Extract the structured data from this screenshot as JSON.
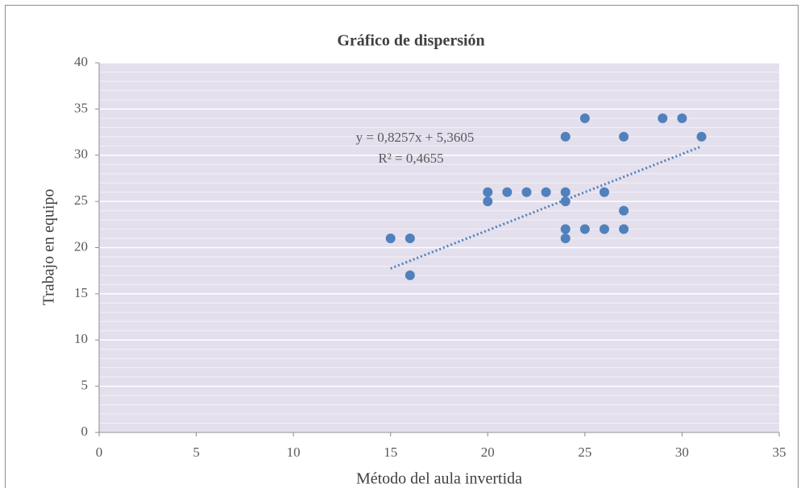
{
  "chart_data": {
    "type": "scatter",
    "title": "Gráfico de dispersión",
    "x_label": "Método del aula invertida",
    "y_label": "Trabajo en equipo",
    "x": [
      15,
      16,
      16,
      20,
      20,
      21,
      22,
      23,
      24,
      24,
      24,
      24,
      24,
      25,
      25,
      26,
      26,
      27,
      27,
      27,
      29,
      30,
      31
    ],
    "values": [
      21,
      21,
      17,
      26,
      25,
      26,
      26,
      26,
      32,
      26,
      25,
      22,
      21,
      34,
      22,
      26,
      22,
      32,
      24,
      22,
      34,
      34,
      32
    ],
    "color": "#4f81bd",
    "xlim": [
      0,
      35
    ],
    "xticks": [
      0,
      5,
      10,
      15,
      20,
      25,
      30,
      35
    ],
    "ylim": [
      0,
      40
    ],
    "yticks": [
      0,
      5,
      10,
      15,
      20,
      25,
      30,
      35,
      40
    ],
    "grid": true,
    "minor_grid_step": 1,
    "plot_background": "#e4dfec",
    "trendline": {
      "equation": "y = 0,8257x  + 5,3605",
      "r2": "R² = 0,4655",
      "slope": 0.8257,
      "intercept": 5.3605
    }
  }
}
